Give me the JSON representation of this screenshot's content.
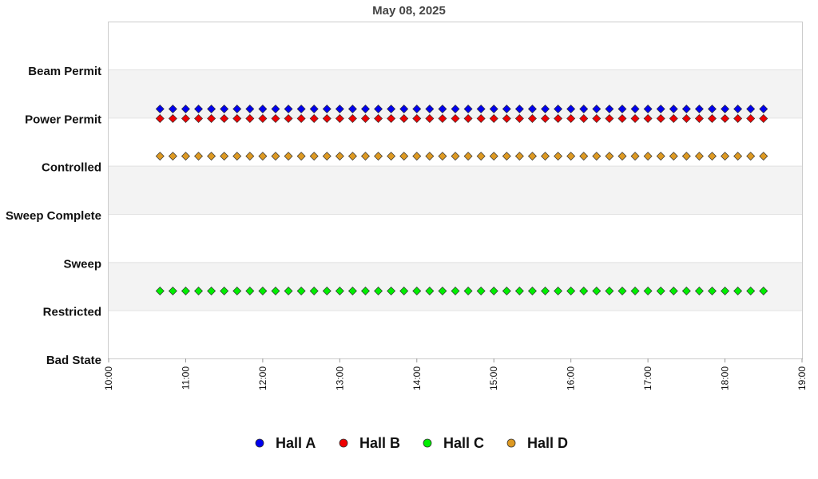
{
  "chart_data": {
    "type": "scatter",
    "title": "May 08, 2025",
    "xlabel": "",
    "ylabel": "",
    "y_categories": [
      "Bad State",
      "Restricted",
      "Sweep",
      "Sweep Complete",
      "Controlled",
      "Power Permit",
      "Beam Permit"
    ],
    "x_ticks": [
      "10:00",
      "11:00",
      "12:00",
      "13:00",
      "14:00",
      "15:00",
      "16:00",
      "17:00",
      "18:00",
      "19:00"
    ],
    "xlim": [
      "10:00",
      "19:00"
    ],
    "x_start": "10:40",
    "x_end": "18:30",
    "x_step_minutes": 10,
    "grid": "alternating horizontal bands",
    "legend_position": "bottom-center",
    "series": [
      {
        "name": "Hall A",
        "color": "#0000ee",
        "y": 5.18
      },
      {
        "name": "Hall B",
        "color": "#ee0000",
        "y": 4.98
      },
      {
        "name": "Hall C",
        "color": "#00ee00",
        "y": 1.4
      },
      {
        "name": "Hall D",
        "color": "#dd9922",
        "y": 4.2
      }
    ]
  }
}
